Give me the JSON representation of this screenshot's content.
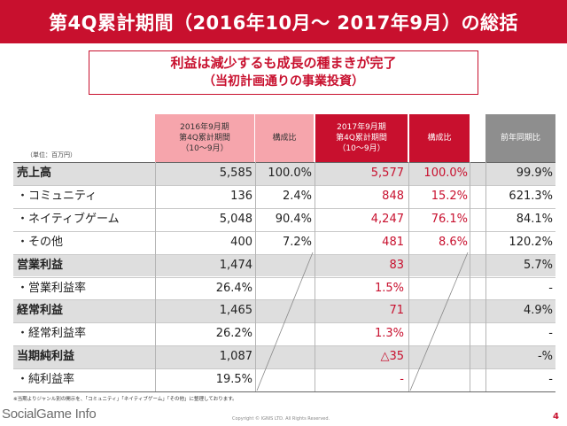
{
  "title": "第4Q累計期間（2016年10月～ 2017年9月）の総括",
  "summary": {
    "line1": "利益は減少するも成長の種まきが完了",
    "line2": "（当初計画通りの事業投資）"
  },
  "unit_label": "（単位：百万円）",
  "headers": {
    "prev_period": [
      "2016年9月期",
      "第4Q累計期間",
      "（10～9月）"
    ],
    "prev_ratio": "構成比",
    "curr_period": [
      "2017年9月期",
      "第4Q累計期間",
      "（10～9月）"
    ],
    "curr_ratio": "構成比",
    "yoy": "前年同期比"
  },
  "rows": [
    {
      "label": "売上高",
      "bold": true,
      "shade": true,
      "prev": "5,585",
      "prev_ratio": "100.0%",
      "curr": "5,577",
      "curr_ratio": "100.0%",
      "yoy": "99.9%"
    },
    {
      "label": "・コミュニティ",
      "bold": false,
      "shade": false,
      "prev": "136",
      "prev_ratio": "2.4%",
      "curr": "848",
      "curr_ratio": "15.2%",
      "yoy": "621.3%"
    },
    {
      "label": "・ネイティブゲーム",
      "bold": false,
      "shade": false,
      "prev": "5,048",
      "prev_ratio": "90.4%",
      "curr": "4,247",
      "curr_ratio": "76.1%",
      "yoy": "84.1%"
    },
    {
      "label": "・その他",
      "bold": false,
      "shade": false,
      "prev": "400",
      "prev_ratio": "7.2%",
      "curr": "481",
      "curr_ratio": "8.6%",
      "yoy": "120.2%"
    },
    {
      "label": "営業利益",
      "bold": true,
      "shade": true,
      "prev": "1,474",
      "prev_ratio": "",
      "curr": "83",
      "curr_ratio": "",
      "yoy": "5.7%"
    },
    {
      "label": "・営業利益率",
      "bold": false,
      "shade": false,
      "prev": "26.4%",
      "prev_ratio": "",
      "curr": "1.5%",
      "curr_ratio": "",
      "yoy": "-"
    },
    {
      "label": "経常利益",
      "bold": true,
      "shade": true,
      "prev": "1,465",
      "prev_ratio": "",
      "curr": "71",
      "curr_ratio": "",
      "yoy": "4.9%"
    },
    {
      "label": "・経常利益率",
      "bold": false,
      "shade": false,
      "prev": "26.2%",
      "prev_ratio": "",
      "curr": "1.3%",
      "curr_ratio": "",
      "yoy": "-"
    },
    {
      "label": "当期純利益",
      "bold": true,
      "shade": true,
      "prev": "1,087",
      "prev_ratio": "",
      "curr": "△35",
      "curr_ratio": "",
      "yoy": "-%"
    },
    {
      "label": "・純利益率",
      "bold": false,
      "shade": false,
      "prev": "19.5%",
      "prev_ratio": "",
      "curr": "-",
      "curr_ratio": "",
      "yoy": "-"
    }
  ],
  "footnote": "※当期よりジャンル別の開示を、「コミュニティ」「ネイティブゲーム」「その他」に整理しております。",
  "brand": "SocialGame Info",
  "copyright": "Copyright © IGNIS LTD. All Rights Reserved.",
  "page_number": "4",
  "colors": {
    "accent": "#c8102e",
    "pink": "#f6a5ac",
    "gray_header": "#8e8e8e",
    "row_shade": "#dedede"
  }
}
